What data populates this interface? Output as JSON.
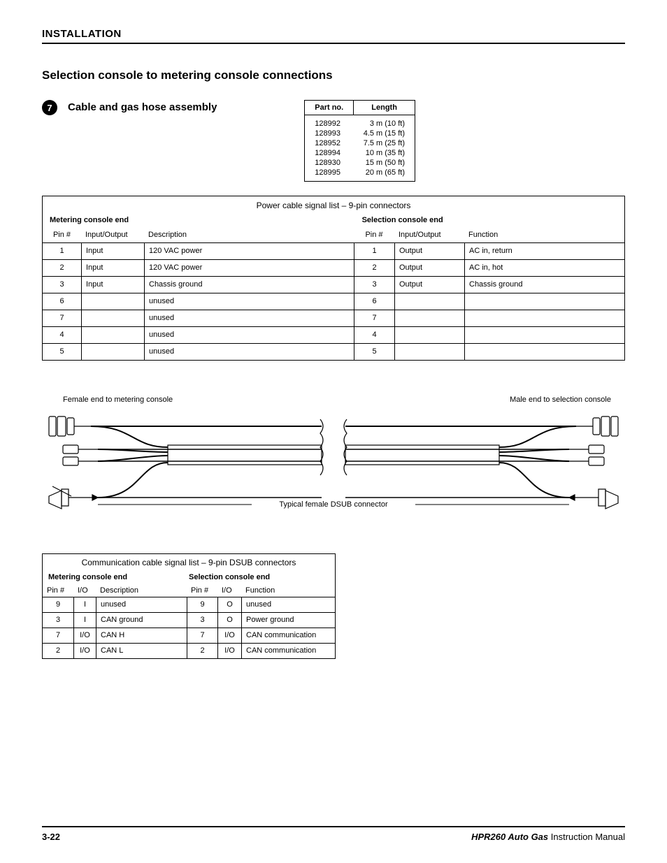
{
  "header": {
    "title": "INSTALLATION"
  },
  "section_title": "Selection console to metering console connections",
  "step": {
    "number": "7",
    "title": "Cable and gas hose assembly"
  },
  "parts_table": {
    "headers": [
      "Part no.",
      "Length"
    ],
    "rows": [
      {
        "partno": "128992",
        "length": "3 m (10 ft)"
      },
      {
        "partno": "128993",
        "length": "4.5 m (15 ft)"
      },
      {
        "partno": "128952",
        "length": "7.5 m (25 ft)"
      },
      {
        "partno": "128994",
        "length": "10 m (35 ft)"
      },
      {
        "partno": "128930",
        "length": "15 m (50 ft)"
      },
      {
        "partno": "128995",
        "length": "20 m (65 ft)"
      }
    ]
  },
  "power_table": {
    "caption": "Power cable signal list – 9-pin connectors",
    "left_header": "Metering console end",
    "right_header": "Selection console end",
    "sub": {
      "pin": "Pin #",
      "io": "Input/Output",
      "desc": "Description",
      "fn": "Function"
    },
    "rows": [
      {
        "pin": "1",
        "io": "Input",
        "desc": "120 VAC power",
        "pin2": "1",
        "io2": "Output",
        "fn": "AC in, return"
      },
      {
        "pin": "2",
        "io": "Input",
        "desc": "120 VAC power",
        "pin2": "2",
        "io2": "Output",
        "fn": "AC in, hot"
      },
      {
        "pin": "3",
        "io": "Input",
        "desc": "Chassis ground",
        "pin2": "3",
        "io2": "Output",
        "fn": "Chassis ground"
      },
      {
        "pin": "6",
        "io": "",
        "desc": "unused",
        "pin2": "6",
        "io2": "",
        "fn": ""
      },
      {
        "pin": "7",
        "io": "",
        "desc": "unused",
        "pin2": "7",
        "io2": "",
        "fn": ""
      },
      {
        "pin": "4",
        "io": "",
        "desc": "unused",
        "pin2": "4",
        "io2": "",
        "fn": ""
      },
      {
        "pin": "5",
        "io": "",
        "desc": "unused",
        "pin2": "5",
        "io2": "",
        "fn": ""
      }
    ]
  },
  "diagram": {
    "left_label": "Female end to metering console",
    "right_label": "Male end to selection console",
    "center_label": "Typical female DSUB connector",
    "stroke": "#000",
    "bg": "#fff",
    "fill_gray": "#e6e6e6"
  },
  "comm_table": {
    "caption": "Communication cable signal list – 9-pin DSUB connectors",
    "left_header": "Metering console end",
    "right_header": "Selection console end",
    "sub": {
      "pin": "Pin #",
      "io": "I/O",
      "desc": "Description",
      "fn": "Function"
    },
    "rows": [
      {
        "pin": "9",
        "io": "I",
        "desc": "unused",
        "pin2": "9",
        "io2": "O",
        "fn": "unused"
      },
      {
        "pin": "3",
        "io": "I",
        "desc": "CAN ground",
        "pin2": "3",
        "io2": "O",
        "fn": "Power ground"
      },
      {
        "pin": "7",
        "io": "I/O",
        "desc": "CAN H",
        "pin2": "7",
        "io2": "I/O",
        "fn": "CAN communication"
      },
      {
        "pin": "2",
        "io": "I/O",
        "desc": "CAN L",
        "pin2": "2",
        "io2": "I/O",
        "fn": "CAN communication"
      }
    ]
  },
  "footer": {
    "page": "3-22",
    "product": "HPR260 Auto Gas",
    "doc": " Instruction Manual"
  }
}
